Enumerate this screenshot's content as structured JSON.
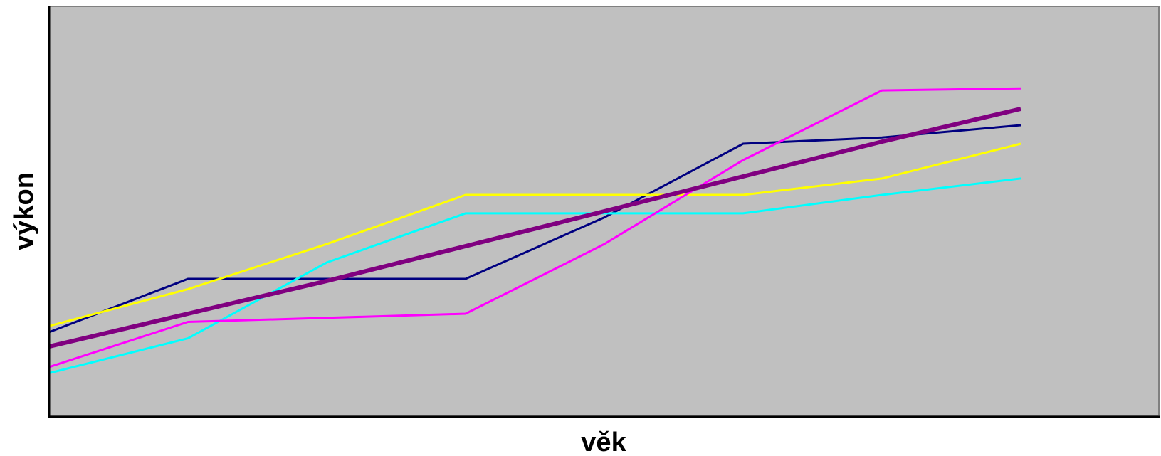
{
  "chart_data": {
    "type": "line",
    "title": "",
    "xlabel": "věk",
    "ylabel": "výkon",
    "x": [
      0,
      1,
      2,
      3,
      4,
      5,
      6,
      7
    ],
    "xlim": [
      0,
      8
    ],
    "ylim": [
      0,
      100
    ],
    "grid": false,
    "legend": "none",
    "colors": {
      "plot_background": "#c0c0c0",
      "axis": "#000000",
      "frame": "#808080"
    },
    "series": [
      {
        "color": "#000080",
        "stroke": "thin",
        "values": [
          20.5,
          33.5,
          33.5,
          33.5,
          48.5,
          66.5,
          68,
          71
        ]
      },
      {
        "color": "#ffff00",
        "stroke": "thin",
        "values": [
          22,
          31,
          42,
          54,
          54,
          54,
          58,
          66.5
        ]
      },
      {
        "color": "#00ffff",
        "stroke": "thin",
        "values": [
          10.5,
          19,
          37.5,
          49.5,
          49.5,
          49.5,
          54,
          58
        ]
      },
      {
        "color": "#ff00ff",
        "stroke": "thin",
        "values": [
          12,
          23,
          24,
          25,
          42,
          62.5,
          79.5,
          80
        ]
      },
      {
        "color": "#800080",
        "stroke": "thick",
        "values": [
          17,
          25,
          33,
          41.5,
          50,
          58.5,
          67,
          75
        ]
      }
    ]
  }
}
